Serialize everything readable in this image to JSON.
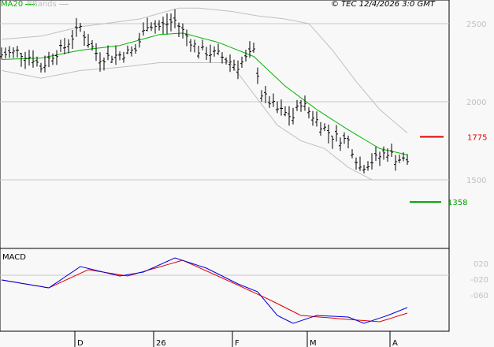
{
  "legend": {
    "ma": "MA20",
    "bb": "BBands"
  },
  "copyright": "© TEC 12/4/2026 3:0 GMT",
  "colors": {
    "ma": "#00b400",
    "bb": "#c0c0c0",
    "bars": "#000000",
    "resistance": "#e00000",
    "support": "#00a000",
    "macd": "#0000e0",
    "signal": "#e00000"
  },
  "chart_data": [
    {
      "type": "line",
      "title": "Price",
      "ylim": [
        1000,
        2650
      ],
      "yticks": [
        "2500",
        "2000",
        "1500"
      ],
      "ytick_values": [
        2500,
        2000,
        1500
      ],
      "xticks": [
        "D",
        "26",
        "F",
        "M",
        "A"
      ],
      "xtick_index": [
        18.6,
        38.6,
        58.6,
        77.6,
        98.6
      ],
      "bars": 104,
      "close": [
        [
          0,
          2300
        ],
        [
          4,
          2320
        ],
        [
          8,
          2280
        ],
        [
          10,
          2220
        ],
        [
          13,
          2300
        ],
        [
          16,
          2350
        ],
        [
          20,
          2480
        ],
        [
          22,
          2380
        ],
        [
          25,
          2280
        ],
        [
          30,
          2300
        ],
        [
          34,
          2330
        ],
        [
          37,
          2500
        ],
        [
          40,
          2480
        ],
        [
          44,
          2520
        ],
        [
          47,
          2420
        ],
        [
          50,
          2330
        ],
        [
          55,
          2300
        ],
        [
          60,
          2230
        ],
        [
          64,
          2320
        ],
        [
          66,
          2050
        ],
        [
          70,
          1950
        ],
        [
          74,
          1900
        ],
        [
          76,
          2000
        ],
        [
          80,
          1880
        ],
        [
          84,
          1780
        ],
        [
          88,
          1750
        ],
        [
          91,
          1580
        ],
        [
          94,
          1620
        ],
        [
          98,
          1680
        ],
        [
          100,
          1640
        ],
        [
          103,
          1620
        ]
      ],
      "ma20": [
        [
          0,
          2270
        ],
        [
          10,
          2280
        ],
        [
          20,
          2330
        ],
        [
          30,
          2360
        ],
        [
          40,
          2430
        ],
        [
          46,
          2440
        ],
        [
          55,
          2380
        ],
        [
          64,
          2290
        ],
        [
          72,
          2100
        ],
        [
          80,
          1950
        ],
        [
          88,
          1820
        ],
        [
          96,
          1700
        ],
        [
          103,
          1660
        ]
      ],
      "bb_upper": [
        [
          0,
          2400
        ],
        [
          10,
          2420
        ],
        [
          20,
          2480
        ],
        [
          35,
          2530
        ],
        [
          45,
          2600
        ],
        [
          50,
          2600
        ],
        [
          58,
          2580
        ],
        [
          65,
          2550
        ],
        [
          72,
          2530
        ],
        [
          78,
          2500
        ],
        [
          84,
          2330
        ],
        [
          90,
          2130
        ],
        [
          96,
          1950
        ],
        [
          103,
          1800
        ]
      ],
      "bb_lower": [
        [
          0,
          2200
        ],
        [
          10,
          2150
        ],
        [
          20,
          2200
        ],
        [
          30,
          2220
        ],
        [
          40,
          2250
        ],
        [
          50,
          2250
        ],
        [
          58,
          2250
        ],
        [
          64,
          2050
        ],
        [
          70,
          1850
        ],
        [
          76,
          1750
        ],
        [
          82,
          1700
        ],
        [
          88,
          1580
        ],
        [
          94,
          1500
        ],
        [
          103,
          1500
        ]
      ],
      "levels": [
        {
          "label": "1775",
          "value": 1775,
          "kind": "resistance"
        },
        {
          "label": "1358",
          "value": 1358,
          "kind": "support"
        }
      ]
    },
    {
      "type": "line",
      "title": "MACD",
      "yticks": [
        "020",
        "-020",
        "-060"
      ],
      "ytick_values": [
        0.2,
        -0.2,
        -0.6
      ],
      "macd": [
        [
          0,
          -0.04
        ],
        [
          12,
          -0.24
        ],
        [
          20,
          0.3
        ],
        [
          30,
          0.06
        ],
        [
          36,
          0.16
        ],
        [
          44,
          0.52
        ],
        [
          52,
          0.26
        ],
        [
          60,
          -0.14
        ],
        [
          65,
          -0.34
        ],
        [
          70,
          -0.94
        ],
        [
          74,
          -1.14
        ],
        [
          80,
          -0.94
        ],
        [
          88,
          -0.98
        ],
        [
          92,
          -1.14
        ],
        [
          98,
          -0.94
        ],
        [
          103,
          -0.74
        ]
      ],
      "signal": [
        [
          0,
          -0.04
        ],
        [
          12,
          -0.24
        ],
        [
          22,
          0.22
        ],
        [
          32,
          0.06
        ],
        [
          46,
          0.46
        ],
        [
          58,
          -0.08
        ],
        [
          68,
          -0.54
        ],
        [
          76,
          -0.94
        ],
        [
          88,
          -1.04
        ],
        [
          96,
          -1.1
        ],
        [
          103,
          -0.88
        ]
      ]
    }
  ]
}
